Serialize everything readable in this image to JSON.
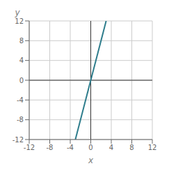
{
  "chart_data": {
    "type": "line",
    "x": [
      -3,
      3
    ],
    "values": [
      -12,
      12
    ],
    "color": "#2e7d8c",
    "xlim": [
      -12,
      12
    ],
    "ylim": [
      -12,
      12
    ],
    "xticks": [
      -12,
      -8,
      -4,
      0,
      4,
      8,
      12
    ],
    "yticks": [
      -12,
      -8,
      -4,
      0,
      4,
      8,
      12
    ],
    "xlabel": "x",
    "ylabel": "y",
    "grid": true
  }
}
